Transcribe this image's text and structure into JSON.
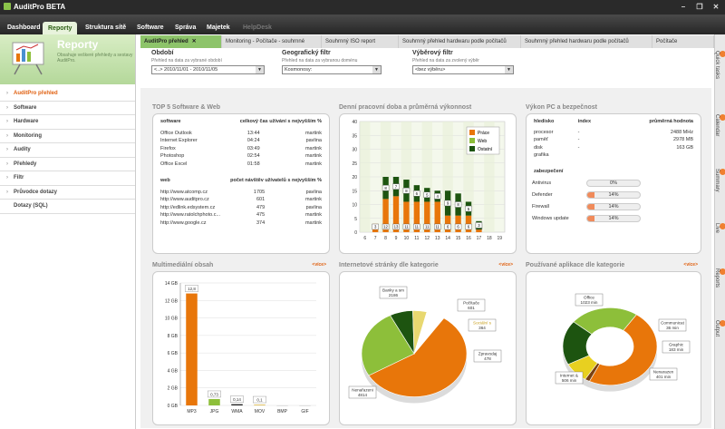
{
  "app": {
    "title": "AuditPro BETA"
  },
  "menu": [
    "Dashboard",
    "Reporty",
    "Struktura sítě",
    "Software",
    "Správa",
    "Majetek",
    "HelpDesk"
  ],
  "sidebar": {
    "title": "Reporty",
    "desc": "Obsahuje veškeré přehledy a sestavy AuditPro.",
    "items": [
      "AuditPro přehled",
      "Software",
      "Hardware",
      "Monitoring",
      "Audity",
      "Přehledy",
      "Filtr",
      "Průvodce dotazy",
      "Dotazy (SQL)"
    ]
  },
  "tabs": [
    "AuditPro přehled",
    "Monitoring - Počítače - souhrnné",
    "Souhrnný ISO report",
    "Souhrnný přehled hardwaru podle počítačů",
    "Souhrnný přehled hardwaru podle počítačů",
    "Počítače"
  ],
  "filters": [
    {
      "title": "Období",
      "sub": "Přehled na data za vybrané období",
      "value": "<..> 2010/11/01 - 2010/11/05"
    },
    {
      "title": "Geografický filtr",
      "sub": "Přehled na data za vybranou doménu",
      "value": "Kosmonosy:"
    },
    {
      "title": "Výběrový filtr",
      "sub": "Přehled na data za zvolený výběr",
      "value": "<bez výběru>"
    }
  ],
  "top5": {
    "title": "TOP 5 Software & Web",
    "sw_head": [
      "software",
      "celkový čas užívání s nejvyšším %"
    ],
    "sw_rows": [
      [
        "Office Outlook",
        "13:44",
        "martink"
      ],
      [
        "Internet Explorer",
        "04:24",
        "pavlina"
      ],
      [
        "Firefox",
        "03:49",
        "martink"
      ],
      [
        "Photoshop",
        "02:54",
        "martink"
      ],
      [
        "Office Excel",
        "01:58",
        "martink"
      ]
    ],
    "web_head": [
      "web",
      "počet návštěv užívatelů s nejvyšším %"
    ],
    "web_rows": [
      [
        "http://www.atcomp.cz",
        "1705",
        "pavlina"
      ],
      [
        "http://www.auditpro.cz",
        "601",
        "martink"
      ],
      [
        "http://edlink.edsystem.cz",
        "479",
        "pavlina"
      ],
      [
        "http://www.ratolchphoto.c...",
        "475",
        "martink"
      ],
      [
        "http://www.google.cz",
        "374",
        "martink"
      ]
    ]
  },
  "perf": {
    "title": "Výkon PC a bezpečnost",
    "head": [
      "hledisko",
      "index",
      "průměrná hodnota"
    ],
    "rows": [
      [
        "procesor",
        "-",
        "2488 MHz"
      ],
      [
        "paměť",
        "-",
        "2978 MB"
      ],
      [
        "disk",
        "-",
        "163 GB"
      ],
      [
        "grafika",
        "",
        ""
      ]
    ],
    "sec_title": "zabezpečení",
    "sec_rows": [
      {
        "label": "Antivirus",
        "pct": 0,
        "text": "0%"
      },
      {
        "label": "Defender",
        "pct": 14,
        "text": "14%"
      },
      {
        "label": "Firewall",
        "pct": 14,
        "text": "14%"
      },
      {
        "label": "Windows update",
        "pct": 14,
        "text": "14%"
      }
    ]
  },
  "more_label": "<více>",
  "colors": {
    "accent": "#e06010",
    "green": "#8dc46a",
    "dark": "#2a2a2a"
  },
  "chart_data": [
    {
      "type": "bar",
      "title": "Denní pracovní doba a průměrná výkonnost",
      "categories": [
        "6",
        "7",
        "8",
        "9",
        "10",
        "11",
        "12",
        "13",
        "14",
        "15",
        "16",
        "17",
        "18",
        "19"
      ],
      "series": [
        {
          "name": "Práce",
          "color": "#e8760a",
          "values": [
            0,
            3,
            12,
            13,
            11,
            11,
            11,
            11,
            6,
            6,
            6,
            1,
            0,
            0
          ]
        },
        {
          "name": "Web",
          "color": "#8dbf3a",
          "values": [
            0,
            0,
            0,
            0,
            0,
            0,
            0,
            0,
            0,
            0,
            0,
            0,
            0,
            0
          ]
        },
        {
          "name": "Ostatní",
          "color": "#1d5410",
          "values": [
            0,
            0,
            8,
            7,
            8,
            6,
            5,
            4,
            9,
            8,
            5,
            3,
            0,
            0
          ]
        }
      ],
      "labels": {
        "Práce": [
          null,
          "3",
          "12",
          "13",
          "11",
          "11",
          "11",
          "11",
          "6",
          "6",
          "6",
          "1",
          null,
          null
        ],
        "Ostatní": [
          null,
          null,
          "8",
          "7",
          "8",
          "6",
          "5",
          "4",
          "9",
          "8",
          "5",
          "3",
          null,
          null
        ]
      },
      "ylim": [
        0,
        40
      ],
      "yticks": [
        0,
        5,
        10,
        15,
        20,
        25,
        30,
        35,
        40
      ],
      "legend": "top-right"
    },
    {
      "type": "bar",
      "title": "Multimediální obsah",
      "categories": [
        "MP3",
        "JPG",
        "WMA",
        "MOV",
        "BMP",
        "GIF"
      ],
      "values": [
        12.8,
        0.73,
        0.14,
        0.1,
        0,
        0
      ],
      "data_labels": [
        "12,8",
        "0,73",
        "0,14",
        "0,1",
        "",
        ""
      ],
      "bar_colors": [
        "#e8760a",
        "#8dbf3a",
        "#222222",
        "#e0c060",
        "#cccccc",
        "#cccccc"
      ],
      "ylim": [
        0,
        14
      ],
      "yticks": [
        "0 GB",
        "2 GB",
        "4 GB",
        "6 GB",
        "8 GB",
        "10 GB",
        "12 GB",
        "14 GB"
      ]
    },
    {
      "type": "pie",
      "title": "Internetové stránky dle kategorie",
      "slices": [
        {
          "label": "Nenařazeni",
          "value": 4814,
          "color": "#e8760a"
        },
        {
          "label": "Banky a sm",
          "value": 2186,
          "color": "#8dbf3a"
        },
        {
          "label": "Počítače",
          "value": 601,
          "color": "#1d5410"
        },
        {
          "label": "Sociální s",
          "value": 364,
          "color": "#e8d870"
        },
        {
          "label": "Zpravodaj",
          "value": 478,
          "color": "#ffffff"
        }
      ]
    },
    {
      "type": "pie",
      "title": "Používané aplikace dle kategorie",
      "slices": [
        {
          "label": "Office",
          "value": 1023,
          "unit": "min",
          "color": "#e8760a"
        },
        {
          "label": "Communicat",
          "value": 36,
          "unit": "min",
          "color": "#7a4010"
        },
        {
          "label": "Graphic",
          "value": 183,
          "unit": "min",
          "color": "#e8d020"
        },
        {
          "label": "Nenarazen",
          "value": 401,
          "unit": "min",
          "color": "#1d5410"
        },
        {
          "label": "Internet &",
          "value": 506,
          "unit": "min",
          "color": "#8dbf3a"
        }
      ]
    }
  ],
  "rail": [
    "Quick tasks",
    "Calendar",
    "Summary",
    "Live",
    "Reports",
    "Output"
  ]
}
